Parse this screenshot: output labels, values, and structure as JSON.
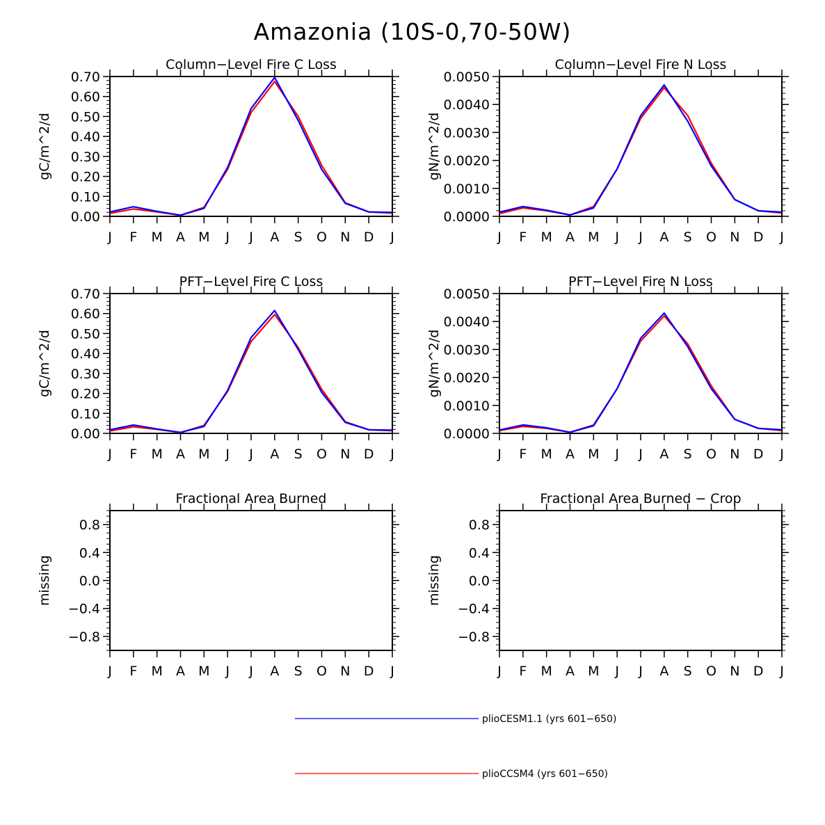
{
  "title": "Amazonia (10S-0,70-50W)",
  "colors": {
    "pliocesm": "#0000ff",
    "plioccsm": "#ff0000"
  },
  "chart_data": [
    {
      "type": "line",
      "title": "Column-Level Fire C Loss",
      "ylabel": "gC/m^2/d",
      "xlabel": "",
      "categories": [
        "J",
        "F",
        "M",
        "A",
        "M",
        "J",
        "J",
        "A",
        "S",
        "O",
        "N",
        "D",
        "J"
      ],
      "ylim": [
        0,
        0.7
      ],
      "yticks": [
        "0.00",
        "0.10",
        "0.20",
        "0.30",
        "0.40",
        "0.50",
        "0.60",
        "0.70"
      ],
      "series": [
        {
          "name": "plioCCSM4 (yrs 601-650)",
          "color": "#ff0000",
          "values": [
            0.015,
            0.037,
            0.022,
            0.005,
            0.045,
            0.235,
            0.52,
            0.675,
            0.5,
            0.255,
            0.068,
            0.022,
            0.016
          ]
        },
        {
          "name": "plioCESM1.1 (yrs 601-650)",
          "color": "#0000ff",
          "values": [
            0.022,
            0.048,
            0.025,
            0.006,
            0.04,
            0.245,
            0.54,
            0.695,
            0.48,
            0.235,
            0.065,
            0.022,
            0.02
          ]
        }
      ]
    },
    {
      "type": "line",
      "title": "Column-Level Fire N Loss",
      "ylabel": "gN/m^2/d",
      "xlabel": "",
      "categories": [
        "J",
        "F",
        "M",
        "A",
        "M",
        "J",
        "J",
        "A",
        "S",
        "O",
        "N",
        "D",
        "J"
      ],
      "ylim": [
        0,
        0.005
      ],
      "yticks": [
        "0.0000",
        "0.0010",
        "0.0020",
        "0.0030",
        "0.0040",
        "0.0050"
      ],
      "series": [
        {
          "name": "plioCCSM4 (yrs 601-650)",
          "color": "#ff0000",
          "values": [
            0.0001,
            0.0003,
            0.0002,
            5e-05,
            0.00035,
            0.0017,
            0.0035,
            0.0046,
            0.0036,
            0.0019,
            0.0006,
            0.0002,
            0.00012
          ]
        },
        {
          "name": "plioCESM1.1 (yrs 601-650)",
          "color": "#0000ff",
          "values": [
            0.00015,
            0.00035,
            0.00022,
            5e-05,
            0.0003,
            0.0017,
            0.0036,
            0.0047,
            0.0034,
            0.0018,
            0.0006,
            0.0002,
            0.00015
          ]
        }
      ]
    },
    {
      "type": "line",
      "title": "PFT-Level Fire C Loss",
      "ylabel": "gC/m^2/d",
      "xlabel": "",
      "categories": [
        "J",
        "F",
        "M",
        "A",
        "M",
        "J",
        "J",
        "A",
        "S",
        "O",
        "N",
        "D",
        "J"
      ],
      "ylim": [
        0,
        0.7
      ],
      "yticks": [
        "0.00",
        "0.10",
        "0.20",
        "0.30",
        "0.40",
        "0.50",
        "0.60",
        "0.70"
      ],
      "series": [
        {
          "name": "plioCCSM4 (yrs 601-650)",
          "color": "#ff0000",
          "values": [
            0.012,
            0.033,
            0.02,
            0.004,
            0.04,
            0.21,
            0.46,
            0.595,
            0.43,
            0.22,
            0.058,
            0.018,
            0.013
          ]
        },
        {
          "name": "plioCESM1.1 (yrs 601-650)",
          "color": "#0000ff",
          "values": [
            0.018,
            0.042,
            0.022,
            0.005,
            0.035,
            0.215,
            0.48,
            0.615,
            0.42,
            0.205,
            0.055,
            0.018,
            0.016
          ]
        }
      ]
    },
    {
      "type": "line",
      "title": "PFT-Level Fire N Loss",
      "ylabel": "gN/m^2/d",
      "xlabel": "",
      "categories": [
        "J",
        "F",
        "M",
        "A",
        "M",
        "J",
        "J",
        "A",
        "S",
        "O",
        "N",
        "D",
        "J"
      ],
      "ylim": [
        0,
        0.005
      ],
      "yticks": [
        "0.0000",
        "0.0010",
        "0.0020",
        "0.0030",
        "0.0040",
        "0.0050"
      ],
      "series": [
        {
          "name": "plioCCSM4 (yrs 601-650)",
          "color": "#ff0000",
          "values": [
            0.0001,
            0.00025,
            0.00018,
            4e-05,
            0.0003,
            0.0016,
            0.0033,
            0.0042,
            0.0032,
            0.0017,
            0.0005,
            0.00018,
            0.0001
          ]
        },
        {
          "name": "plioCESM1.1 (yrs 601-650)",
          "color": "#0000ff",
          "values": [
            0.00012,
            0.0003,
            0.0002,
            4e-05,
            0.00027,
            0.0016,
            0.0034,
            0.0043,
            0.0031,
            0.0016,
            0.0005,
            0.00018,
            0.00013
          ]
        }
      ]
    },
    {
      "type": "line",
      "title": "Fractional Area Burned",
      "ylabel": "missing",
      "xlabel": "",
      "categories": [
        "J",
        "F",
        "M",
        "A",
        "M",
        "J",
        "J",
        "A",
        "S",
        "O",
        "N",
        "D",
        "J"
      ],
      "ylim": [
        -1,
        1
      ],
      "yticks": [
        "-0.8",
        "-0.4",
        "0.0",
        "0.4",
        "0.8"
      ],
      "series": []
    },
    {
      "type": "line",
      "title": "Fractional Area Burned - Crop",
      "ylabel": "missing",
      "xlabel": "",
      "categories": [
        "J",
        "F",
        "M",
        "A",
        "M",
        "J",
        "J",
        "A",
        "S",
        "O",
        "N",
        "D",
        "J"
      ],
      "ylim": [
        -1,
        1
      ],
      "yticks": [
        "-0.8",
        "-0.4",
        "0.0",
        "0.4",
        "0.8"
      ],
      "series": []
    }
  ],
  "legend": [
    {
      "label": "plioCESM1.1 (yrs 601-650)",
      "color": "#0000ff"
    },
    {
      "label": "plioCCSM4 (yrs 601-650)",
      "color": "#ff0000"
    }
  ]
}
